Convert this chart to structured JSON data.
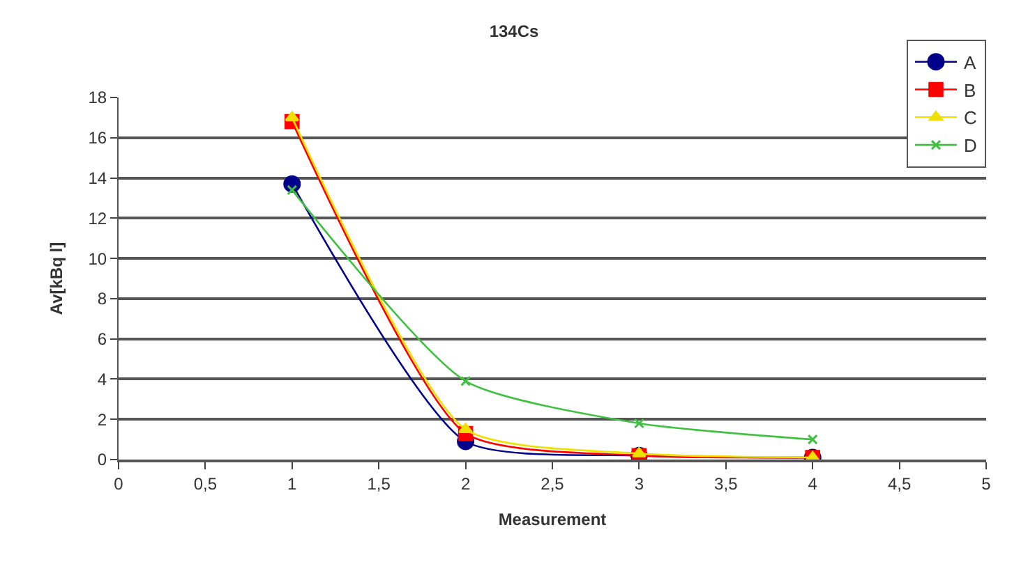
{
  "chart_data": {
    "type": "line",
    "title": "134Cs",
    "xlabel": "Measurement",
    "ylabel": "Av[kBq l]",
    "x": [
      1,
      2,
      3,
      4
    ],
    "series": [
      {
        "name": "A",
        "color": "#00008b",
        "marker": "circle",
        "values": [
          13.7,
          0.9,
          0.2,
          0.1
        ]
      },
      {
        "name": "B",
        "color": "#ff0000",
        "marker": "square",
        "values": [
          16.8,
          1.3,
          0.2,
          0.1
        ]
      },
      {
        "name": "C",
        "color": "#f0e000",
        "marker": "triangle",
        "values": [
          17.0,
          1.5,
          0.3,
          0.1
        ]
      },
      {
        "name": "D",
        "color": "#40c040",
        "marker": "cross",
        "values": [
          13.4,
          3.9,
          1.8,
          1.0
        ]
      }
    ],
    "xlim": [
      0,
      5
    ],
    "xticks": [
      0,
      {
        "value": 0.5,
        "label": "0,5"
      },
      1,
      {
        "value": 1.5,
        "label": "1,5"
      },
      2,
      {
        "value": 2.5,
        "label": "2,5"
      },
      3,
      {
        "value": 3.5,
        "label": "3,5"
      },
      4,
      {
        "value": 4.5,
        "label": "4,5"
      },
      5
    ],
    "ylim": [
      0,
      18
    ],
    "yticks": [
      0,
      2,
      4,
      6,
      8,
      10,
      12,
      14,
      16,
      18
    ],
    "grid": "y",
    "legend": "top right",
    "line_style": "solid"
  }
}
